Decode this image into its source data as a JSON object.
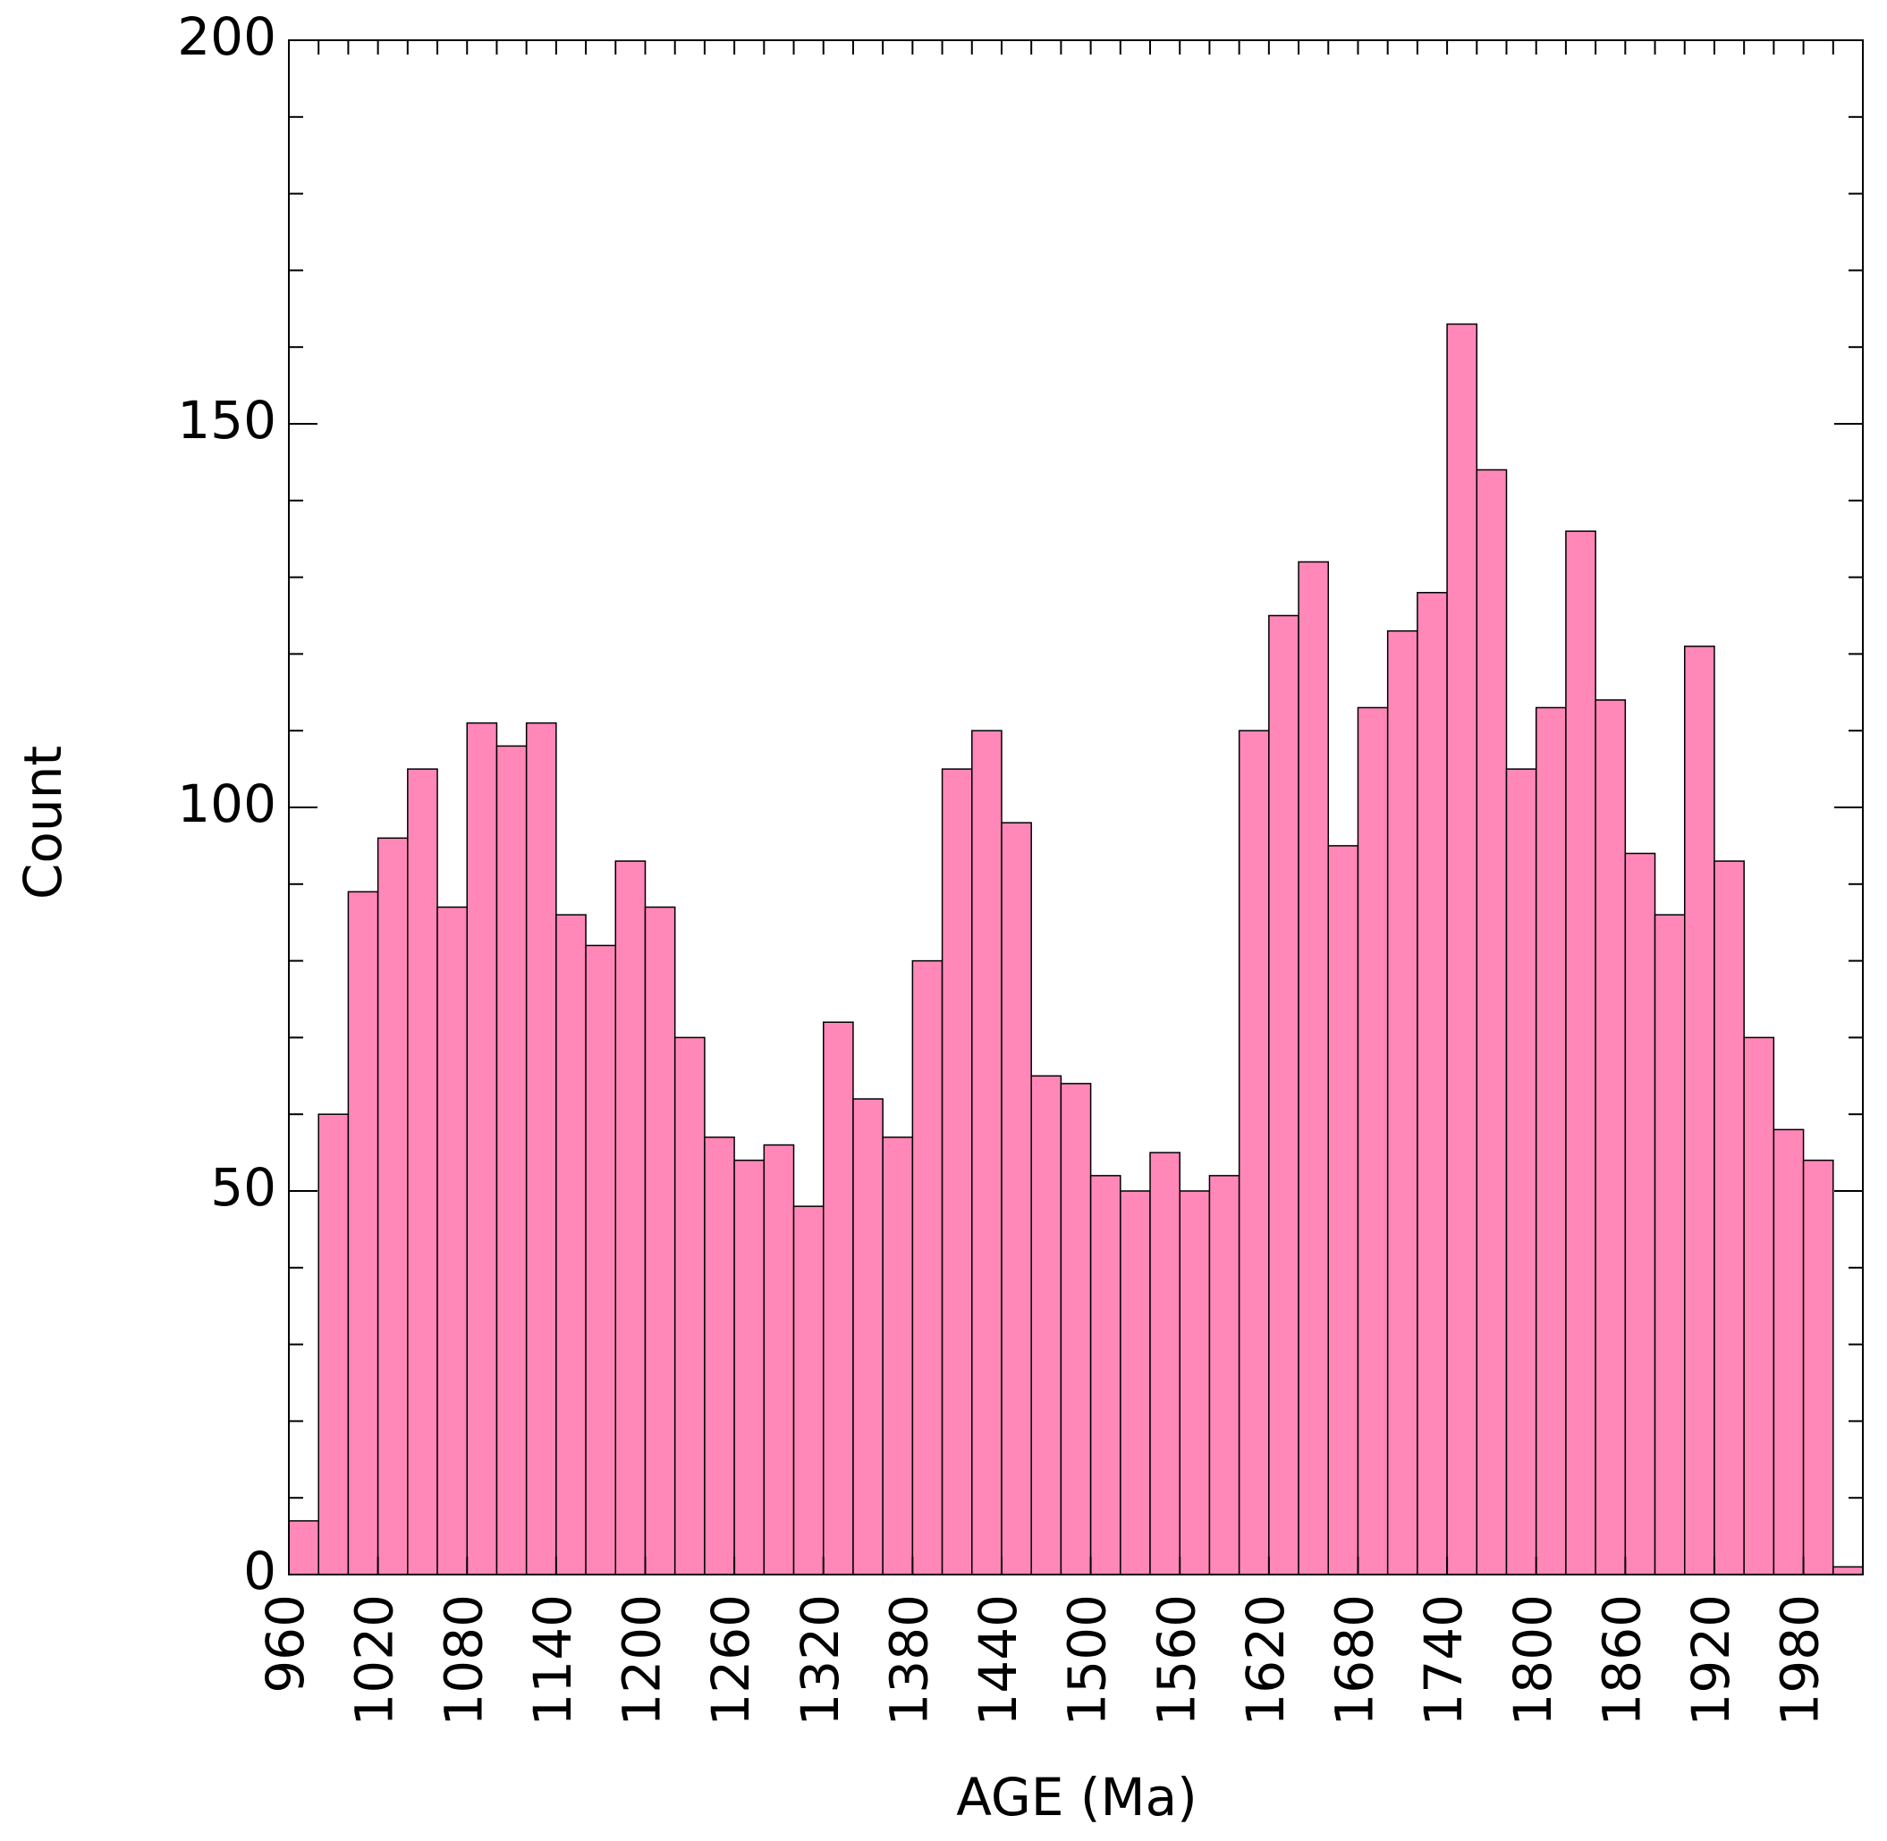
{
  "chart_data": {
    "type": "histogram",
    "xlabel": "AGE (Ma)",
    "ylabel": "Count",
    "color": "#ff88b8",
    "bins": [
      960,
      980,
      1000,
      1020,
      1040,
      1060,
      1080,
      1100,
      1120,
      1140,
      1160,
      1180,
      1200,
      1220,
      1240,
      1260,
      1280,
      1300,
      1320,
      1340,
      1360,
      1380,
      1400,
      1420,
      1440,
      1460,
      1480,
      1500,
      1520,
      1540,
      1560,
      1580,
      1600,
      1620,
      1640,
      1660,
      1680,
      1700,
      1720,
      1740,
      1760,
      1780,
      1800,
      1820,
      1840,
      1860,
      1880,
      1900,
      1920,
      1940,
      1960,
      1980,
      2000,
      2020
    ],
    "values": [
      7,
      60,
      89,
      96,
      105,
      87,
      111,
      108,
      111,
      86,
      82,
      93,
      87,
      70,
      57,
      54,
      56,
      48,
      72,
      62,
      57,
      80,
      105,
      110,
      98,
      65,
      64,
      52,
      50,
      55,
      50,
      52,
      110,
      125,
      132,
      95,
      113,
      123,
      128,
      163,
      144,
      105,
      113,
      136,
      114,
      94,
      86,
      121,
      93,
      70,
      58,
      54,
      1
    ],
    "xlim": [
      960,
      2020
    ],
    "xticks": [
      960,
      1020,
      1080,
      1140,
      1200,
      1260,
      1320,
      1380,
      1440,
      1500,
      1560,
      1620,
      1680,
      1740,
      1800,
      1860,
      1920,
      1980
    ],
    "ylim": [
      0,
      200
    ],
    "yticks": [
      0,
      50,
      100,
      150,
      200
    ],
    "y_minor_ticks": [
      10,
      20,
      30,
      40,
      60,
      70,
      80,
      90,
      110,
      120,
      130,
      140,
      160,
      170,
      180,
      190
    ]
  }
}
